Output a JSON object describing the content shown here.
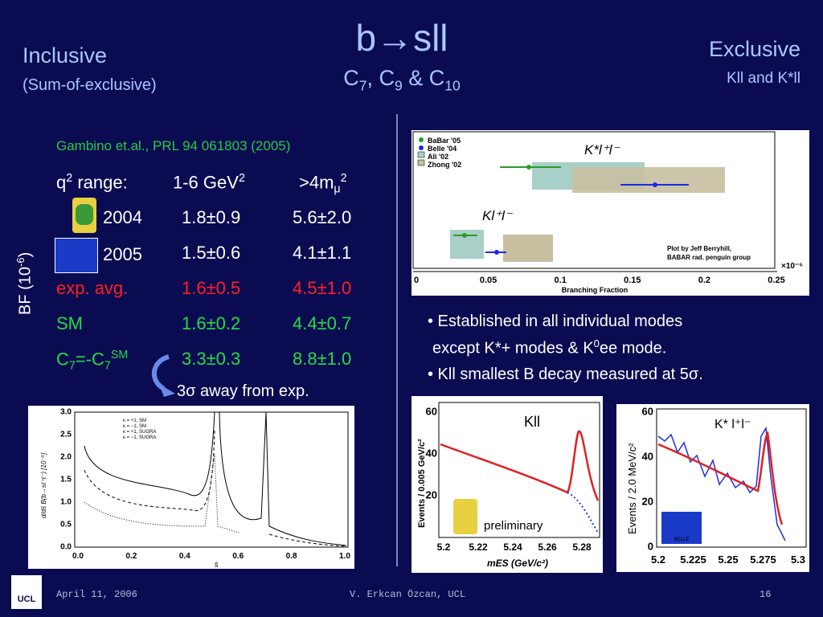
{
  "title": "b→sll",
  "subtitle": [
    [
      "C",
      "7"
    ],
    [
      ", C",
      "9"
    ],
    [
      " & C",
      "10"
    ]
  ],
  "left_heading": {
    "title": "Inclusive",
    "subtitle": "(Sum-of-exclusive)"
  },
  "right_heading": {
    "title": "Exclusive",
    "subtitle": "Kll and K*ll"
  },
  "reference": "Gambino et.al., PRL 94 061803 (2005)",
  "axis_label": {
    "text": "BF (10",
    "sup": "-6",
    "tail": ")"
  },
  "table": {
    "header": [
      {
        "text": "q",
        "sup": "2",
        "tail": " range:"
      },
      {
        "text": "1-6 GeV",
        "sup": "2"
      },
      {
        "text": ">4m",
        "sub": "μ",
        "sup": "2"
      }
    ],
    "rows": [
      {
        "label": "2004",
        "cells": [
          "1.8±0.9",
          "5.6±2.0"
        ]
      },
      {
        "label": "2005",
        "cells": [
          "1.5±0.6",
          "4.1±1.1"
        ]
      },
      {
        "label": "exp. avg.",
        "cells": [
          "1.6±0.5",
          "4.5±1.0"
        ]
      },
      {
        "label": "SM",
        "cells": [
          "1.6±0.2",
          "4.4±0.7"
        ]
      },
      {
        "label": [
          "C",
          "7",
          "=-C",
          "7",
          "SM"
        ],
        "cells": [
          "3.3±0.3",
          "8.8±1.0"
        ]
      }
    ],
    "note": "3σ away from exp."
  },
  "bullets": [
    [
      "• Established in all individual modes",
      "except K*+ modes & K",
      "0",
      "ee mode."
    ],
    [
      "• Kll smallest B decay measured at 5σ."
    ]
  ],
  "figures": {
    "branching": {
      "legend": [
        "BaBar '05",
        "Belle '04",
        "Ali '02",
        "Zhong '02"
      ],
      "labels": [
        "K*l⁺l⁻",
        "Kl⁺l⁻"
      ],
      "credit": [
        "Plot by Jeff Berryhill,",
        "BABAR rad. penguin group"
      ],
      "xticks": [
        "0",
        "0.05",
        "0.1",
        "0.15",
        "0.2",
        "0.25"
      ],
      "scale": "×10⁻⁵",
      "xlabel": "Branching Fraction"
    },
    "spectrum": {
      "legend": [
        "κ = +1, SM",
        "κ = −1, SM",
        "κ = +1, SUGRA",
        "κ = −1, SUGRA"
      ],
      "yticks": [
        "0.0",
        "0.5",
        "1.0",
        "1.5",
        "2.0",
        "2.5",
        "3.0"
      ],
      "xticks": [
        "0.0",
        "0.2",
        "0.4",
        "0.6",
        "0.8",
        "1.0"
      ],
      "ylabel": "d/dŝ B(b→sℓ⁺ℓ⁻) [10⁻⁵]",
      "xlabel": "ŝ"
    },
    "babar": {
      "label": "Kll",
      "note": "preliminary",
      "ylabel": "Events / 0.005 GeV/c²",
      "yticks": [
        "20",
        "40",
        "60"
      ],
      "xticks": [
        "5.2",
        "5.22",
        "5.24",
        "5.26",
        "5.28"
      ],
      "xlabel": "mES (GeV/c²)"
    },
    "belle": {
      "label": "K* l⁺l⁻",
      "ylabel": "Events / 2.0 MeV/c²",
      "yticks": [
        "0",
        "20",
        "40",
        "60"
      ],
      "xticks": [
        "5.2",
        "5.225",
        "5.25",
        "5.275",
        "5.3"
      ],
      "logo": "BELLE"
    }
  },
  "footer": {
    "date": "April 11, 2006",
    "author": "V. Erkcan Özcan, UCL",
    "page": "16",
    "logo": "UCL"
  }
}
